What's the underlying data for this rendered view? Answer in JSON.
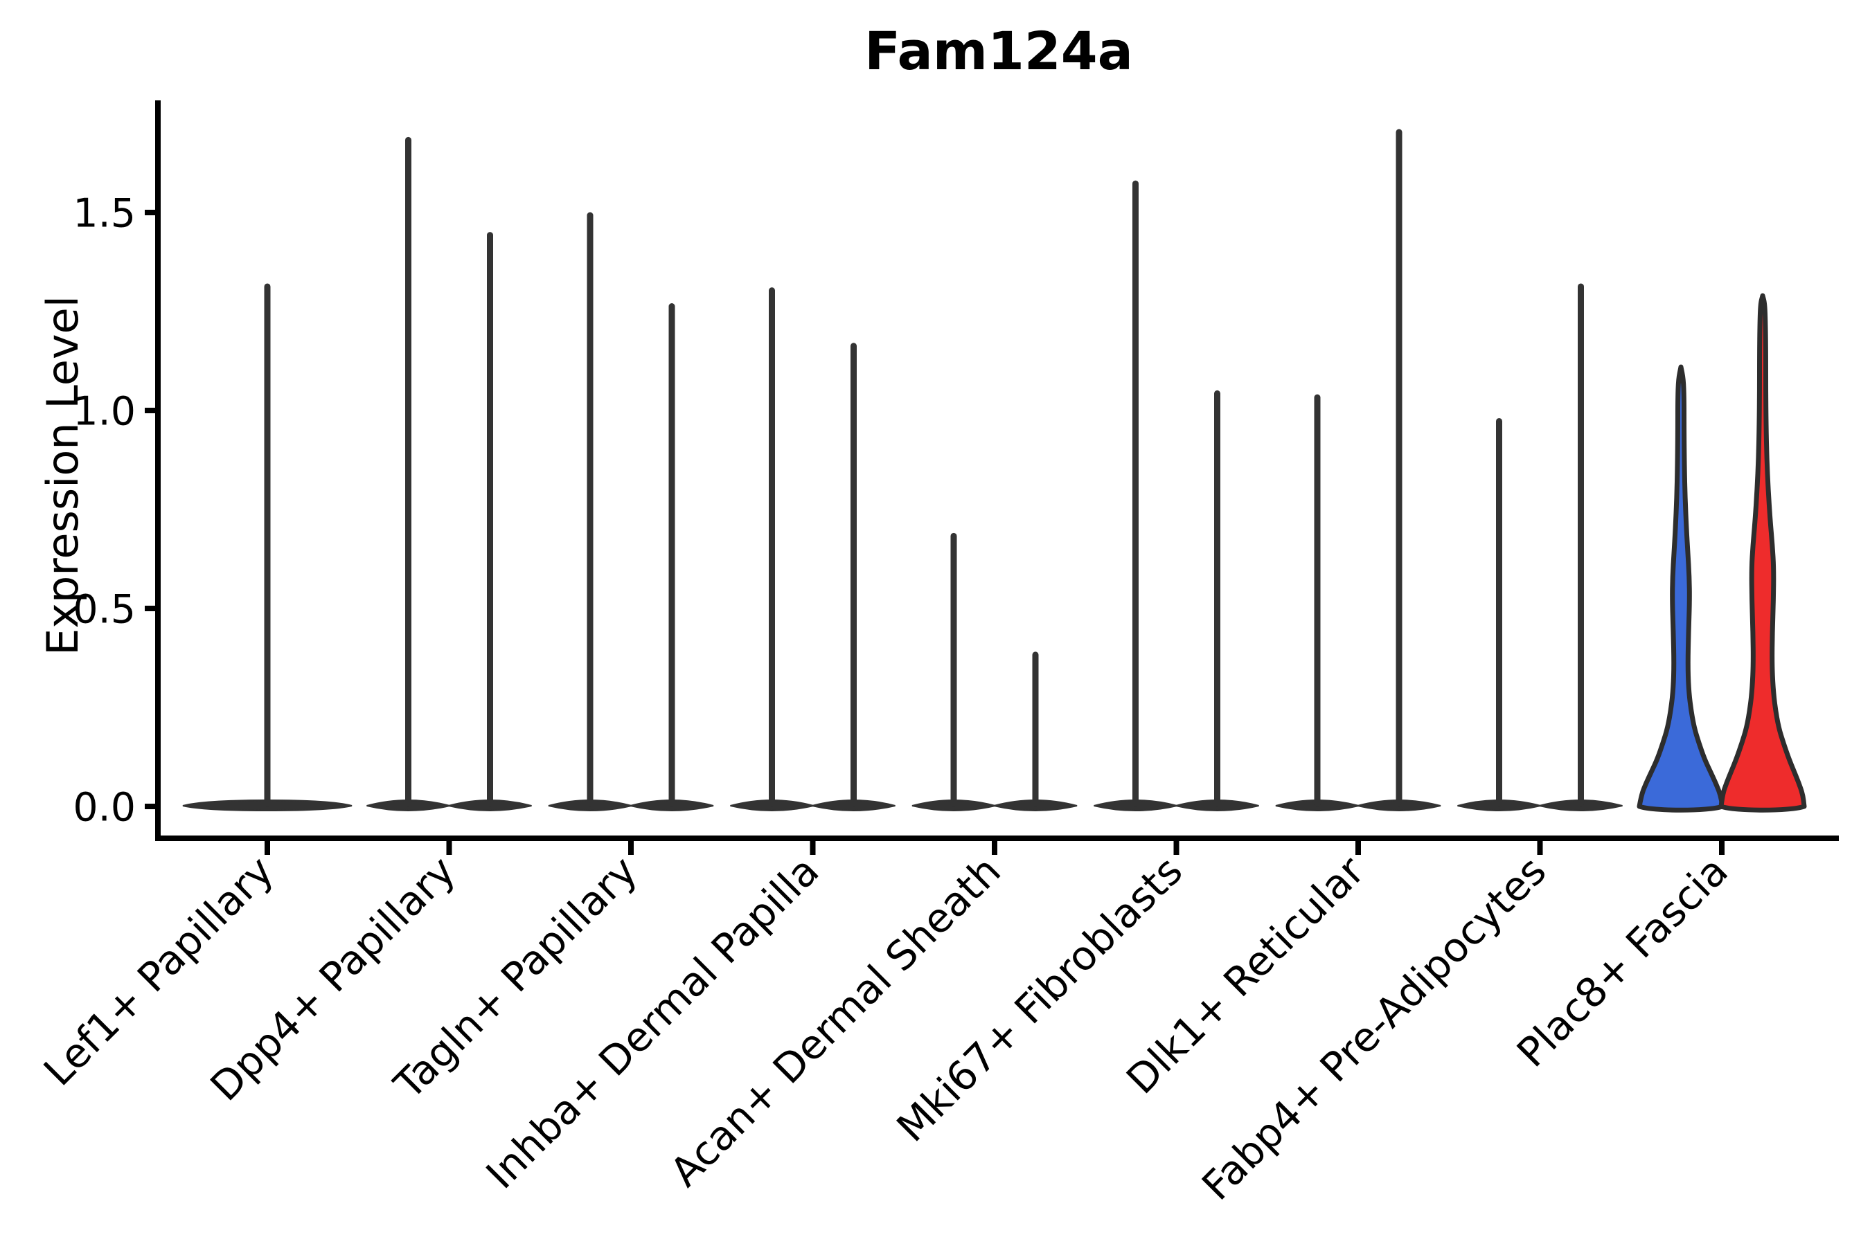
{
  "chart_data": {
    "type": "violin",
    "title": "Fam124a",
    "ylabel": "Expression Level",
    "xlabel": "",
    "grid": false,
    "legend": "none",
    "ylim": [
      0,
      1.78
    ],
    "ytick_labels": [
      "0.0",
      "0.5",
      "1.0",
      "1.5"
    ],
    "ytick_values": [
      0.0,
      0.5,
      1.0,
      1.5
    ],
    "categories": [
      "Lef1+ Papillary",
      "Dpp4+ Papillary",
      "Tagln+ Papillary",
      "Inhba+ Dermal Papilla",
      "Acan+ Dermal Sheath",
      "Mki67+ Fibroblasts",
      "Dlk1+ Reticular",
      "Fabp4+ Pre-Adipocytes",
      "Plac8+ Fascia"
    ],
    "violins": [
      {
        "category": "Lef1+ Papillary",
        "items": [
          {
            "position": "center",
            "max": 1.32,
            "style": "flat"
          }
        ]
      },
      {
        "category": "Dpp4+ Papillary",
        "items": [
          {
            "position": "left",
            "max": 1.69,
            "style": "flat"
          },
          {
            "position": "right",
            "max": 1.45,
            "style": "flat"
          }
        ]
      },
      {
        "category": "Tagln+ Papillary",
        "items": [
          {
            "position": "left",
            "max": 1.5,
            "style": "flat"
          },
          {
            "position": "right",
            "max": 1.27,
            "style": "flat"
          }
        ]
      },
      {
        "category": "Inhba+ Dermal Papilla",
        "items": [
          {
            "position": "left",
            "max": 1.31,
            "style": "flat"
          },
          {
            "position": "right",
            "max": 1.17,
            "style": "flat"
          }
        ]
      },
      {
        "category": "Acan+ Dermal Sheath",
        "items": [
          {
            "position": "left",
            "max": 0.69,
            "style": "flat"
          },
          {
            "position": "right",
            "max": 0.39,
            "style": "flat"
          }
        ]
      },
      {
        "category": "Mki67+ Fibroblasts",
        "items": [
          {
            "position": "left",
            "max": 1.58,
            "style": "flat"
          },
          {
            "position": "right",
            "max": 1.05,
            "style": "flat"
          }
        ]
      },
      {
        "category": "Dlk1+ Reticular",
        "items": [
          {
            "position": "left",
            "max": 1.04,
            "style": "flat"
          },
          {
            "position": "right",
            "max": 1.71,
            "style": "flat"
          }
        ]
      },
      {
        "category": "Fabp4+ Pre-Adipocytes",
        "items": [
          {
            "position": "left",
            "max": 0.98,
            "style": "flat"
          },
          {
            "position": "right",
            "max": 1.32,
            "style": "flat"
          }
        ]
      },
      {
        "category": "Plac8+ Fascia",
        "items": [
          {
            "position": "left",
            "max": 1.11,
            "style": "blue"
          },
          {
            "position": "right",
            "max": 1.29,
            "style": "red"
          }
        ]
      }
    ],
    "filled_profiles": {
      "blue": [
        [
          0,
          60
        ],
        [
          0.03,
          57
        ],
        [
          0.06,
          50
        ],
        [
          0.09,
          42
        ],
        [
          0.12,
          34
        ],
        [
          0.16,
          26
        ],
        [
          0.2,
          19
        ],
        [
          0.25,
          14
        ],
        [
          0.3,
          11
        ],
        [
          0.36,
          10
        ],
        [
          0.44,
          11
        ],
        [
          0.52,
          12.5
        ],
        [
          0.58,
          12
        ],
        [
          0.64,
          10
        ],
        [
          0.7,
          8
        ],
        [
          0.78,
          6
        ],
        [
          0.86,
          5
        ],
        [
          0.95,
          4.5
        ],
        [
          1.03,
          4.5
        ],
        [
          1.08,
          3.5
        ],
        [
          1.11,
          0
        ]
      ],
      "red": [
        [
          0,
          60
        ],
        [
          0.03,
          58
        ],
        [
          0.06,
          52
        ],
        [
          0.09,
          45
        ],
        [
          0.12,
          38
        ],
        [
          0.16,
          30
        ],
        [
          0.2,
          23
        ],
        [
          0.25,
          18
        ],
        [
          0.3,
          15
        ],
        [
          0.36,
          13.5
        ],
        [
          0.44,
          14
        ],
        [
          0.52,
          15.5
        ],
        [
          0.6,
          16
        ],
        [
          0.66,
          14
        ],
        [
          0.72,
          11
        ],
        [
          0.8,
          8
        ],
        [
          0.88,
          6
        ],
        [
          0.96,
          5
        ],
        [
          1.05,
          4.5
        ],
        [
          1.14,
          4.5
        ],
        [
          1.22,
          4
        ],
        [
          1.27,
          3
        ],
        [
          1.29,
          0
        ]
      ]
    },
    "colors": {
      "blue": "#3B6AD9",
      "red": "#EE2C2C",
      "ink": "#333333",
      "axis": "#000000"
    }
  }
}
